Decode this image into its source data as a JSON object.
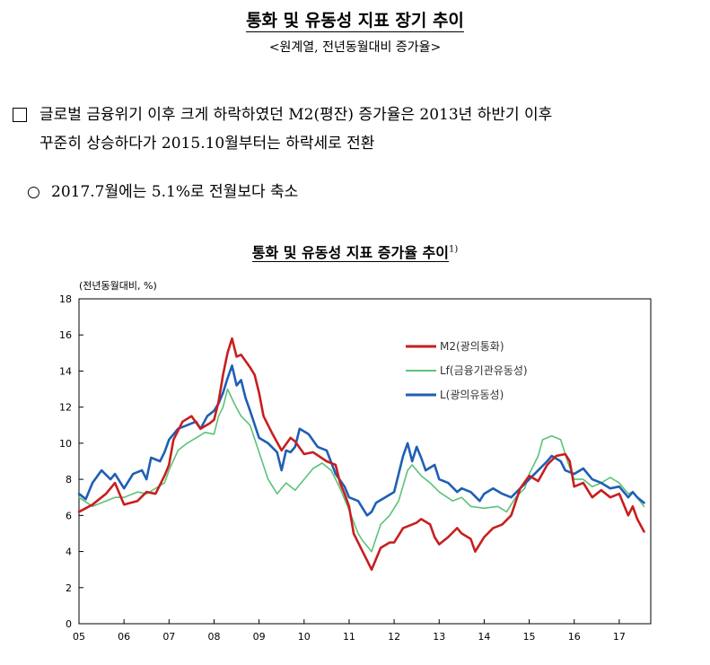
{
  "header": {
    "title": "통화 및 유동성 지표 장기 추이",
    "subtitle": "<원계열, 전년동월대비 증가율>"
  },
  "bullets": {
    "b1": "글로벌 금융위기 이후 크게 하락하였던 M2(평잔) 증가율은 2013년 하반기 이후\n꾸준히 상승하다가 2015.10월부터는 하락세로 전환",
    "b2_marker": "○",
    "b2": "2017.7월에는 5.1%로 전월보다 축소"
  },
  "chart_title": "통화 및 유동성 지표 증가율 추이",
  "chart_title_note": "1)",
  "chart_data": {
    "type": "line",
    "ylabel": "(전년동월대비, %)",
    "ylim": [
      0,
      18
    ],
    "yticks": [
      0,
      2,
      4,
      6,
      8,
      10,
      12,
      14,
      16,
      18
    ],
    "xlim": [
      2005.0,
      2017.7
    ],
    "xtick_labels": [
      "05",
      "06",
      "07",
      "08",
      "09",
      "10",
      "11",
      "12",
      "13",
      "14",
      "15",
      "16",
      "17"
    ],
    "legend_position": "top-right",
    "grid": false,
    "series": [
      {
        "name": "M2(광의통화)",
        "color": "#c81e1e",
        "points": [
          [
            2005.0,
            6.2
          ],
          [
            2005.3,
            6.6
          ],
          [
            2005.6,
            7.2
          ],
          [
            2005.8,
            7.8
          ],
          [
            2006.0,
            6.6
          ],
          [
            2006.3,
            6.8
          ],
          [
            2006.5,
            7.3
          ],
          [
            2006.7,
            7.2
          ],
          [
            2006.9,
            8.2
          ],
          [
            2007.0,
            8.8
          ],
          [
            2007.1,
            10.2
          ],
          [
            2007.3,
            11.2
          ],
          [
            2007.5,
            11.5
          ],
          [
            2007.7,
            10.8
          ],
          [
            2007.9,
            11.1
          ],
          [
            2008.0,
            11.3
          ],
          [
            2008.1,
            12.3
          ],
          [
            2008.2,
            13.8
          ],
          [
            2008.3,
            15.0
          ],
          [
            2008.4,
            15.8
          ],
          [
            2008.5,
            14.8
          ],
          [
            2008.6,
            14.9
          ],
          [
            2008.8,
            14.2
          ],
          [
            2008.9,
            13.8
          ],
          [
            2009.0,
            12.8
          ],
          [
            2009.1,
            11.5
          ],
          [
            2009.3,
            10.5
          ],
          [
            2009.5,
            9.6
          ],
          [
            2009.7,
            10.3
          ],
          [
            2009.8,
            10.1
          ],
          [
            2010.0,
            9.4
          ],
          [
            2010.2,
            9.5
          ],
          [
            2010.5,
            9.0
          ],
          [
            2010.7,
            8.8
          ],
          [
            2010.8,
            7.8
          ],
          [
            2010.9,
            7.2
          ],
          [
            2011.0,
            6.5
          ],
          [
            2011.1,
            5.0
          ],
          [
            2011.3,
            4.0
          ],
          [
            2011.4,
            3.5
          ],
          [
            2011.5,
            3.0
          ],
          [
            2011.7,
            4.2
          ],
          [
            2011.9,
            4.5
          ],
          [
            2012.0,
            4.5
          ],
          [
            2012.2,
            5.3
          ],
          [
            2012.5,
            5.6
          ],
          [
            2012.6,
            5.8
          ],
          [
            2012.8,
            5.5
          ],
          [
            2012.9,
            4.8
          ],
          [
            2013.0,
            4.4
          ],
          [
            2013.2,
            4.8
          ],
          [
            2013.4,
            5.3
          ],
          [
            2013.5,
            5.0
          ],
          [
            2013.7,
            4.7
          ],
          [
            2013.8,
            4.0
          ],
          [
            2014.0,
            4.8
          ],
          [
            2014.2,
            5.3
          ],
          [
            2014.4,
            5.5
          ],
          [
            2014.6,
            6.0
          ],
          [
            2014.8,
            7.5
          ],
          [
            2015.0,
            8.2
          ],
          [
            2015.2,
            7.9
          ],
          [
            2015.4,
            8.8
          ],
          [
            2015.6,
            9.3
          ],
          [
            2015.8,
            9.4
          ],
          [
            2015.9,
            9.0
          ],
          [
            2016.0,
            7.6
          ],
          [
            2016.2,
            7.8
          ],
          [
            2016.4,
            7.0
          ],
          [
            2016.6,
            7.4
          ],
          [
            2016.8,
            7.0
          ],
          [
            2017.0,
            7.2
          ],
          [
            2017.2,
            6.0
          ],
          [
            2017.3,
            6.5
          ],
          [
            2017.4,
            5.8
          ],
          [
            2017.55,
            5.1
          ]
        ]
      },
      {
        "name": "Lf(금융기관유동성)",
        "color": "#5cc27a",
        "points": [
          [
            2005.0,
            7.0
          ],
          [
            2005.3,
            6.5
          ],
          [
            2005.6,
            6.8
          ],
          [
            2005.8,
            7.0
          ],
          [
            2006.0,
            7.0
          ],
          [
            2006.3,
            7.3
          ],
          [
            2006.5,
            7.2
          ],
          [
            2006.7,
            7.5
          ],
          [
            2006.9,
            7.8
          ],
          [
            2007.0,
            8.5
          ],
          [
            2007.2,
            9.6
          ],
          [
            2007.4,
            10.0
          ],
          [
            2007.6,
            10.3
          ],
          [
            2007.8,
            10.6
          ],
          [
            2008.0,
            10.5
          ],
          [
            2008.1,
            11.5
          ],
          [
            2008.2,
            12.0
          ],
          [
            2008.3,
            13.0
          ],
          [
            2008.45,
            12.2
          ],
          [
            2008.6,
            11.5
          ],
          [
            2008.8,
            11.0
          ],
          [
            2009.0,
            9.5
          ],
          [
            2009.2,
            8.0
          ],
          [
            2009.4,
            7.2
          ],
          [
            2009.6,
            7.8
          ],
          [
            2009.8,
            7.4
          ],
          [
            2010.0,
            8.0
          ],
          [
            2010.2,
            8.6
          ],
          [
            2010.4,
            8.9
          ],
          [
            2010.6,
            8.5
          ],
          [
            2010.8,
            7.5
          ],
          [
            2011.0,
            6.3
          ],
          [
            2011.2,
            5.0
          ],
          [
            2011.3,
            4.6
          ],
          [
            2011.5,
            4.0
          ],
          [
            2011.7,
            5.5
          ],
          [
            2011.9,
            6.0
          ],
          [
            2012.1,
            6.8
          ],
          [
            2012.3,
            8.5
          ],
          [
            2012.4,
            8.8
          ],
          [
            2012.6,
            8.2
          ],
          [
            2012.8,
            7.8
          ],
          [
            2013.0,
            7.3
          ],
          [
            2013.3,
            6.8
          ],
          [
            2013.5,
            7.0
          ],
          [
            2013.7,
            6.5
          ],
          [
            2014.0,
            6.4
          ],
          [
            2014.3,
            6.5
          ],
          [
            2014.5,
            6.2
          ],
          [
            2014.7,
            7.0
          ],
          [
            2014.9,
            7.5
          ],
          [
            2015.0,
            8.3
          ],
          [
            2015.2,
            9.3
          ],
          [
            2015.3,
            10.2
          ],
          [
            2015.5,
            10.4
          ],
          [
            2015.7,
            10.2
          ],
          [
            2015.85,
            9.0
          ],
          [
            2016.0,
            8.0
          ],
          [
            2016.2,
            8.0
          ],
          [
            2016.4,
            7.6
          ],
          [
            2016.6,
            7.8
          ],
          [
            2016.8,
            8.1
          ],
          [
            2017.0,
            7.8
          ],
          [
            2017.2,
            7.2
          ],
          [
            2017.3,
            7.3
          ],
          [
            2017.55,
            6.5
          ]
        ]
      },
      {
        "name": "L(광의유동성)",
        "color": "#1f5fb4",
        "points": [
          [
            2005.0,
            7.2
          ],
          [
            2005.15,
            6.9
          ],
          [
            2005.3,
            7.8
          ],
          [
            2005.5,
            8.5
          ],
          [
            2005.7,
            8.0
          ],
          [
            2005.8,
            8.3
          ],
          [
            2006.0,
            7.5
          ],
          [
            2006.2,
            8.3
          ],
          [
            2006.4,
            8.5
          ],
          [
            2006.5,
            8.0
          ],
          [
            2006.6,
            9.2
          ],
          [
            2006.8,
            9.0
          ],
          [
            2006.9,
            9.5
          ],
          [
            2007.0,
            10.2
          ],
          [
            2007.2,
            10.8
          ],
          [
            2007.4,
            11.0
          ],
          [
            2007.6,
            11.2
          ],
          [
            2007.7,
            10.8
          ],
          [
            2007.85,
            11.5
          ],
          [
            2008.0,
            11.8
          ],
          [
            2008.1,
            12.2
          ],
          [
            2008.2,
            12.8
          ],
          [
            2008.3,
            13.6
          ],
          [
            2008.4,
            14.3
          ],
          [
            2008.5,
            13.2
          ],
          [
            2008.6,
            13.5
          ],
          [
            2008.7,
            12.5
          ],
          [
            2008.8,
            11.8
          ],
          [
            2009.0,
            10.3
          ],
          [
            2009.2,
            10.0
          ],
          [
            2009.4,
            9.5
          ],
          [
            2009.5,
            8.5
          ],
          [
            2009.6,
            9.6
          ],
          [
            2009.7,
            9.5
          ],
          [
            2009.8,
            9.8
          ],
          [
            2009.9,
            10.8
          ],
          [
            2010.1,
            10.5
          ],
          [
            2010.3,
            9.8
          ],
          [
            2010.5,
            9.6
          ],
          [
            2010.7,
            8.3
          ],
          [
            2010.9,
            7.6
          ],
          [
            2011.0,
            7.0
          ],
          [
            2011.2,
            6.8
          ],
          [
            2011.3,
            6.4
          ],
          [
            2011.4,
            6.0
          ],
          [
            2011.5,
            6.2
          ],
          [
            2011.6,
            6.7
          ],
          [
            2011.8,
            7.0
          ],
          [
            2012.0,
            7.3
          ],
          [
            2012.2,
            9.3
          ],
          [
            2012.3,
            10.0
          ],
          [
            2012.4,
            9.0
          ],
          [
            2012.5,
            9.8
          ],
          [
            2012.6,
            9.2
          ],
          [
            2012.7,
            8.5
          ],
          [
            2012.9,
            8.8
          ],
          [
            2013.0,
            8.0
          ],
          [
            2013.2,
            7.8
          ],
          [
            2013.4,
            7.3
          ],
          [
            2013.5,
            7.5
          ],
          [
            2013.7,
            7.3
          ],
          [
            2013.9,
            6.8
          ],
          [
            2014.0,
            7.2
          ],
          [
            2014.2,
            7.5
          ],
          [
            2014.4,
            7.2
          ],
          [
            2014.6,
            7.0
          ],
          [
            2014.8,
            7.5
          ],
          [
            2015.0,
            8.0
          ],
          [
            2015.2,
            8.5
          ],
          [
            2015.4,
            9.0
          ],
          [
            2015.5,
            9.3
          ],
          [
            2015.7,
            9.0
          ],
          [
            2015.8,
            8.5
          ],
          [
            2016.0,
            8.3
          ],
          [
            2016.2,
            8.6
          ],
          [
            2016.4,
            8.0
          ],
          [
            2016.6,
            7.8
          ],
          [
            2016.8,
            7.5
          ],
          [
            2017.0,
            7.6
          ],
          [
            2017.2,
            7.0
          ],
          [
            2017.3,
            7.3
          ],
          [
            2017.4,
            7.0
          ],
          [
            2017.55,
            6.7
          ]
        ]
      }
    ]
  }
}
